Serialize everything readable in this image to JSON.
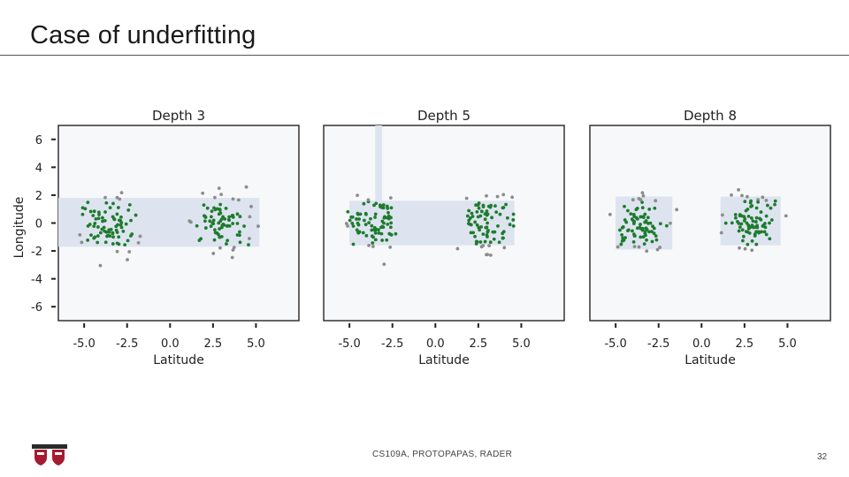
{
  "slide": {
    "title": "Case of underfitting",
    "footer": "CS109A, PROTOPAPAS, RADER",
    "page_number": "32"
  },
  "colors": {
    "region": "#dde4ef",
    "green_point": "#1e7b2e",
    "gray_point": "#8c8c8c",
    "panel_bg": "#f7f8f9"
  },
  "chart_data": [
    {
      "type": "scatter",
      "title": "Depth 3",
      "xlabel": "Latitude",
      "ylabel": "Longitude",
      "xlim": [
        -6.5,
        7.5
      ],
      "ylim": [
        -7,
        7
      ],
      "xticks": [
        "-5.0",
        "-2.5",
        "0.0",
        "2.5",
        "5.0"
      ],
      "yticks": [
        "6",
        "4",
        "2",
        "0",
        "-2",
        "-4",
        "-6"
      ],
      "regions": [
        {
          "x0": -6.5,
          "x1": 5.2,
          "y0": -1.7,
          "y1": 1.8
        }
      ],
      "cluster_centers": [
        [
          -3.5,
          0
        ],
        [
          3.0,
          0
        ]
      ]
    },
    {
      "type": "scatter",
      "title": "Depth 5",
      "xlabel": "Latitude",
      "ylabel": "",
      "xlim": [
        -6.5,
        7.5
      ],
      "ylim": [
        -7,
        7
      ],
      "xticks": [
        "-5.0",
        "-2.5",
        "0.0",
        "2.5",
        "5.0"
      ],
      "yticks": [],
      "regions": [
        {
          "x0": -5.0,
          "x1": 4.6,
          "y0": -1.6,
          "y1": 1.6
        },
        {
          "x0": -3.5,
          "x1": -3.1,
          "y0": 1.6,
          "y1": 7.0
        }
      ],
      "cluster_centers": [
        [
          -3.5,
          0
        ],
        [
          3.0,
          0
        ]
      ]
    },
    {
      "type": "scatter",
      "title": "Depth 8",
      "xlabel": "Latitude",
      "ylabel": "",
      "xlim": [
        -6.5,
        7.5
      ],
      "ylim": [
        -7,
        7
      ],
      "xticks": [
        "-5.0",
        "-2.5",
        "0.0",
        "2.5",
        "5.0"
      ],
      "yticks": [],
      "regions": [
        {
          "x0": -5.0,
          "x1": -1.7,
          "y0": -1.9,
          "y1": 1.9
        },
        {
          "x0": 1.1,
          "x1": 4.6,
          "y0": -1.6,
          "y1": 1.9
        }
      ],
      "cluster_centers": [
        [
          -3.5,
          0
        ],
        [
          3.0,
          0
        ]
      ]
    }
  ]
}
